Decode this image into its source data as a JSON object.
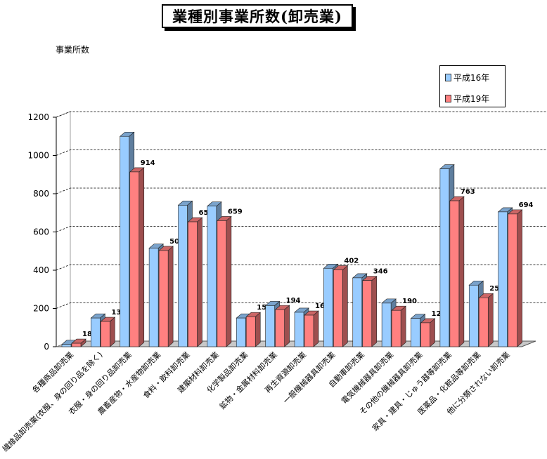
{
  "chart_data": {
    "type": "bar",
    "title": "業種別事業所数(卸売業)",
    "ylabel": "事業所数",
    "xlabel": "",
    "ylim": [
      0,
      1200
    ],
    "yticks": [
      0,
      200,
      400,
      600,
      800,
      1000,
      1200
    ],
    "grid": true,
    "legend_position": "top-right",
    "categories": [
      "各種商品卸売業",
      "繊維品卸売業(衣服、身の回り品を除く)",
      "衣服・身の回り品卸売業",
      "農畜産物・水産物卸売業",
      "食料・飲料卸売業",
      "建築材料卸売業",
      "化学製品卸売業",
      "鉱物・金属材料卸売業",
      "再生資源卸売業",
      "一般機械器具卸売業",
      "自動車卸売業",
      "電気機械器具卸売業",
      "その他の機械器具卸売業",
      "家具・建具・じゅう器等卸売業",
      "医薬品・化粧品等卸売業",
      "他に分類されない卸売業"
    ],
    "series": [
      {
        "name": "平成16年",
        "color": "#99ccff",
        "values": [
          12,
          150,
          1100,
          515,
          740,
          735,
          150,
          215,
          180,
          410,
          360,
          228,
          148,
          930,
          322,
          705
        ]
      },
      {
        "name": "平成19年",
        "color": "#ff8080",
        "values": [
          18,
          132,
          914,
          503,
          653,
          659,
          157,
          194,
          165,
          402,
          346,
          190,
          125,
          763,
          256,
          694
        ]
      }
    ]
  }
}
